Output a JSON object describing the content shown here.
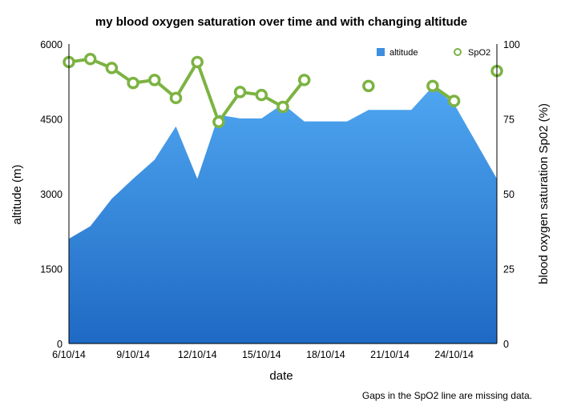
{
  "chart_data": {
    "type": "area",
    "title": "my blood oxygen saturation over time and with changing altitude",
    "xlabel": "date",
    "ylabel_left": "altitude (m)",
    "ylabel_right": "blood oxygen saturation Sp02 (%)",
    "x_ticks": [
      "6/10/14",
      "9/10/14",
      "12/10/14",
      "15/10/14",
      "18/10/14",
      "21/10/14",
      "24/10/14"
    ],
    "x_tick_indices": [
      0,
      3,
      6,
      9,
      12,
      15,
      18
    ],
    "x": [
      "6/10/14",
      "7/10/14",
      "8/10/14",
      "9/10/14",
      "10/10/14",
      "11/10/14",
      "12/10/14",
      "13/10/14",
      "14/10/14",
      "15/10/14",
      "16/10/14",
      "17/10/14",
      "18/10/14",
      "19/10/14",
      "20/10/14",
      "21/10/14",
      "22/10/14",
      "23/10/14",
      "24/10/14",
      "25/10/14",
      "26/10/14"
    ],
    "y_left_lim": [
      0,
      6000
    ],
    "y_left_ticks": [
      0,
      1500,
      3000,
      4500,
      6000
    ],
    "y_right_lim": [
      0,
      100
    ],
    "y_right_ticks": [
      0,
      25,
      50,
      75,
      100
    ],
    "grid": false,
    "legend_position": "top-right",
    "series": [
      {
        "name": "altitude",
        "axis": "left",
        "kind": "area",
        "color": "#3d8fe0",
        "values": [
          2100,
          2350,
          2900,
          3300,
          3680,
          4350,
          3300,
          4580,
          4510,
          4510,
          4800,
          4450,
          4450,
          4450,
          4680,
          4680,
          4680,
          5150,
          4800,
          4050,
          3300
        ]
      },
      {
        "name": "SpO2",
        "axis": "right",
        "kind": "line",
        "color": "#7cb342",
        "values": [
          94,
          95,
          92,
          87,
          88,
          82,
          94,
          74,
          84,
          83,
          79,
          88,
          null,
          null,
          86,
          null,
          null,
          86,
          81,
          null,
          91
        ]
      }
    ],
    "annotation": "Gaps in the SpO2 line are missing data."
  }
}
